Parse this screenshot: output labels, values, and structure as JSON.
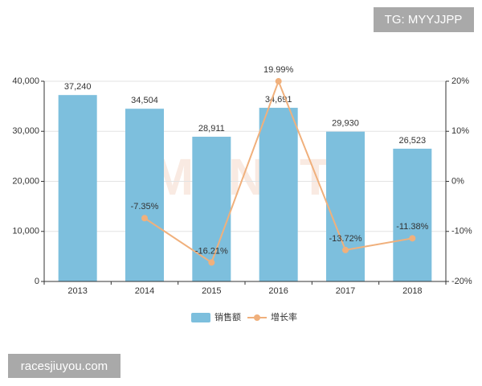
{
  "chart_data": {
    "type": "bar-line",
    "categories": [
      "2013",
      "2014",
      "2015",
      "2016",
      "2017",
      "2018"
    ],
    "series": [
      {
        "name": "销售额",
        "type": "bar",
        "color": "#7dbfdd",
        "values": [
          37240,
          34504,
          28911,
          34691,
          29930,
          26523
        ],
        "value_labels": [
          "37,240",
          "34,504",
          "28,911",
          "34,691",
          "29,930",
          "26,523"
        ]
      },
      {
        "name": "增长率",
        "type": "line",
        "axis": "y2",
        "color": "#f0b07c",
        "values": [
          null,
          -7.35,
          -16.21,
          19.99,
          -13.72,
          -11.38
        ],
        "value_labels": [
          null,
          "-7.35%",
          "-16.21%",
          "19.99%",
          "-13.72%",
          "-11.38%"
        ]
      }
    ],
    "ylim": [
      0,
      40000
    ],
    "yticks": [
      0,
      {
        "value": 10000,
        "label": "10,000"
      },
      {
        "value": 20000,
        "label": "20,000"
      },
      {
        "value": 30000,
        "label": "30,000"
      },
      {
        "value": 40000,
        "label": "40,000"
      }
    ],
    "y2lim": [
      -20,
      20
    ],
    "y2ticks": [
      {
        "value": -20,
        "label": "-20%"
      },
      {
        "value": -10,
        "label": "-10%"
      },
      {
        "value": 0,
        "label": "0%"
      },
      {
        "value": 10,
        "label": "10%"
      },
      {
        "value": 20,
        "label": "20%"
      }
    ],
    "grid": true,
    "legend": "bottom"
  },
  "watermarks": {
    "background": "MENET",
    "top_right": "TG: MYYJJPP",
    "bottom_left": "racesjiuyou.com"
  }
}
